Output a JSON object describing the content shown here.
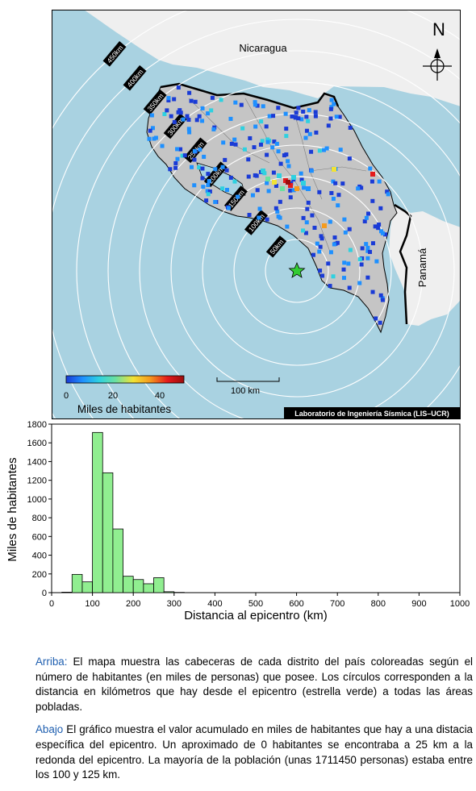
{
  "map": {
    "labels": {
      "north": "N",
      "country_north": "Nicaragua",
      "country_east": "Panamá",
      "scalebar": "100 km",
      "credit": "Laboratorio de Ingeniería Sísmica (LIS–UCR)"
    },
    "ring_labels": [
      "50km",
      "100km",
      "150km",
      "200km",
      "250km",
      "300km",
      "350km",
      "400km",
      "450km"
    ],
    "colorbar": {
      "title": "Miles de habitantes",
      "ticks": [
        "0",
        "20",
        "40"
      ],
      "min": 0,
      "max": 50,
      "colors": [
        "#1a3bd6",
        "#1e90ff",
        "#2ed1e0",
        "#6be0a0",
        "#f2e234",
        "#f59b1e",
        "#e41a1c",
        "#9b0d0d"
      ]
    },
    "colors": {
      "sea": "#a9d2e1",
      "land_neighbor": "#efefef",
      "land_country": "#c5c5c5",
      "epicenter": "#33cc33"
    },
    "icons": [
      "compass-rose-icon",
      "epicenter-star-icon"
    ]
  },
  "chart_data": {
    "type": "bar",
    "xlabel": "Distancia al epicentro (km)",
    "ylabel": "Miles de habitantes",
    "xlim": [
      0,
      1000
    ],
    "ylim": [
      0,
      1800
    ],
    "xticks": [
      "0",
      "100",
      "200",
      "300",
      "400",
      "500",
      "600",
      "700",
      "800",
      "900",
      "1000"
    ],
    "yticks": [
      "0",
      "200",
      "400",
      "600",
      "800",
      "1000",
      "1200",
      "1400",
      "1600",
      "1800"
    ],
    "bin_width": 25,
    "bins": [
      {
        "start": 0,
        "value": 0
      },
      {
        "start": 25,
        "value": 5
      },
      {
        "start": 50,
        "value": 195
      },
      {
        "start": 75,
        "value": 115
      },
      {
        "start": 100,
        "value": 1711
      },
      {
        "start": 125,
        "value": 1280
      },
      {
        "start": 150,
        "value": 680
      },
      {
        "start": 175,
        "value": 175
      },
      {
        "start": 200,
        "value": 140
      },
      {
        "start": 225,
        "value": 95
      },
      {
        "start": 250,
        "value": 160
      },
      {
        "start": 275,
        "value": 10
      },
      {
        "start": 300,
        "value": 3
      }
    ],
    "bar_color": "#90ee90"
  },
  "caption": {
    "p1_label": "Arriba:",
    "p1_text": " El mapa muestra las cabeceras de cada distrito del país coloreadas según el número de habitantes (en miles de personas) que posee.  Los círculos corresponden a la distancia en kilómetros que hay desde el epicentro (estrella verde) a todas las áreas pobladas.",
    "p2_label": "Abajo",
    "p2_text": " El gráfico muestra el valor acumulado en miles de habitantes que hay a una distacia específica del epicentro.  Un aproximado de 0 habitantes se encontraba a 25 km a la redonda del epicentro.  La mayoría de la población (unas 1711450 personas) estaba entre los 100 y 125 km."
  }
}
